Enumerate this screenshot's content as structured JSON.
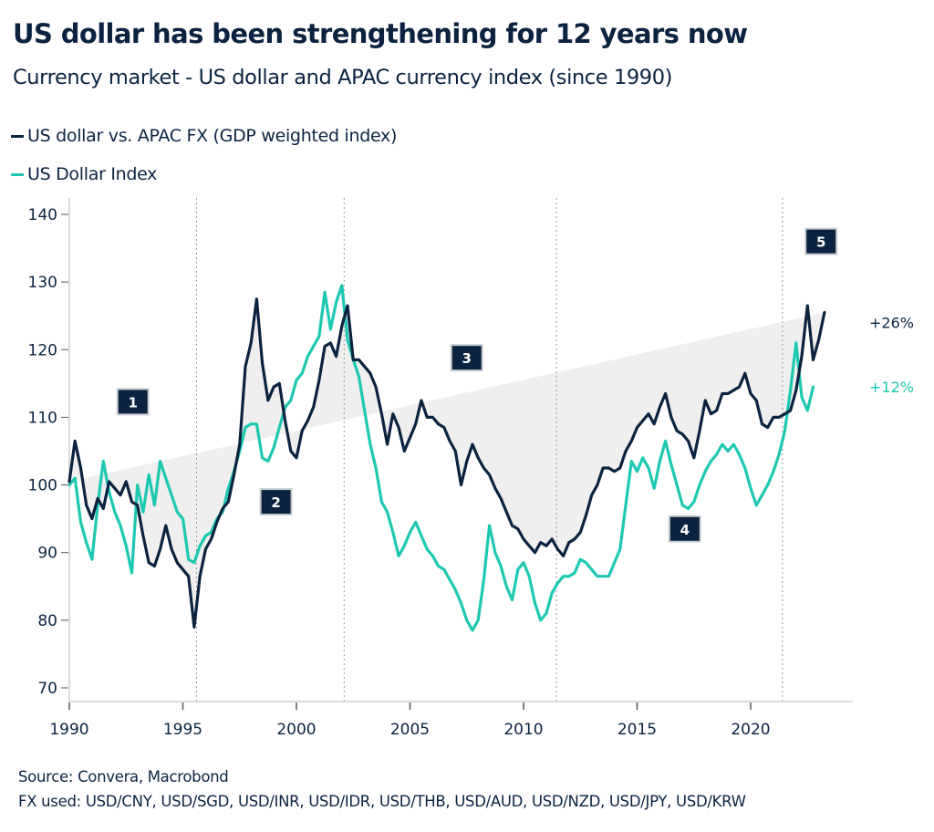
{
  "header": {
    "title": "US dollar has been strengthening for 12 years now",
    "subtitle": "Currency market - US dollar and APAC currency index (since 1990)"
  },
  "legend": [
    {
      "label": "US dollar vs. APAC FX (GDP weighted index)",
      "color": "#0b2340"
    },
    {
      "label": "US Dollar Index",
      "color": "#1ec8b0"
    }
  ],
  "footer": {
    "source": "Source: Convera, Macrobond",
    "fx_used": "FX used: USD/CNY, USD/SGD, USD/INR, USD/IDR, USD/THB, USD/AUD, USD/NZD, USD/JPY, USD/KRW"
  },
  "chart_data": {
    "type": "line",
    "title": "US dollar has been strengthening for 12 years now",
    "subtitle": "Currency market - US dollar and APAC currency index (since 1990)",
    "xlabel": "",
    "ylabel": "",
    "xlim": [
      1990,
      2024.5
    ],
    "ylim": [
      67,
      142
    ],
    "x_ticks": [
      1990,
      1995,
      2000,
      2005,
      2010,
      2015,
      2020
    ],
    "x_tick_labels": [
      "1990",
      "1995",
      "2000",
      "2005",
      "2010",
      "2015",
      "2020"
    ],
    "y_ticks": [
      70,
      80,
      90,
      100,
      110,
      120,
      130,
      140
    ],
    "y_tick_labels": [
      "70",
      "80",
      "90",
      "100",
      "110",
      "120",
      "130",
      "140"
    ],
    "grid": false,
    "legend_position": "top-left",
    "fill_between_series": true,
    "fill_color": "#efefef",
    "vertical_markers": [
      1995.6,
      2002.1,
      2011.45,
      2021.4
    ],
    "regime_boxes": [
      {
        "label": "1",
        "x": 1992.8,
        "y": 112.3
      },
      {
        "label": "2",
        "x": 1999.1,
        "y": 97.5
      },
      {
        "label": "3",
        "x": 2007.5,
        "y": 118.8
      },
      {
        "label": "4",
        "x": 2017.1,
        "y": 93.5
      },
      {
        "label": "5",
        "x": 2023.1,
        "y": 136.0
      }
    ],
    "end_labels": [
      {
        "text": "+26%",
        "series": 0,
        "color": "#0b2340",
        "y": 124.0
      },
      {
        "text": "+12%",
        "series": 1,
        "color": "#1ec8b0",
        "y": 114.5
      }
    ],
    "x": [
      1990.0,
      1990.25,
      1990.5,
      1990.75,
      1991.0,
      1991.25,
      1991.5,
      1991.75,
      1992.0,
      1992.25,
      1992.5,
      1992.75,
      1993.0,
      1993.25,
      1993.5,
      1993.75,
      1994.0,
      1994.25,
      1994.5,
      1994.75,
      1995.0,
      1995.25,
      1995.5,
      1995.75,
      1996.0,
      1996.25,
      1996.5,
      1996.75,
      1997.0,
      1997.25,
      1997.5,
      1997.75,
      1998.0,
      1998.25,
      1998.5,
      1998.75,
      1999.0,
      1999.25,
      1999.5,
      1999.75,
      2000.0,
      2000.25,
      2000.5,
      2000.75,
      2001.0,
      2001.25,
      2001.5,
      2001.75,
      2002.0,
      2002.25,
      2002.5,
      2002.75,
      2003.0,
      2003.25,
      2003.5,
      2003.75,
      2004.0,
      2004.25,
      2004.5,
      2004.75,
      2005.0,
      2005.25,
      2005.5,
      2005.75,
      2006.0,
      2006.25,
      2006.5,
      2006.75,
      2007.0,
      2007.25,
      2007.5,
      2007.75,
      2008.0,
      2008.25,
      2008.5,
      2008.75,
      2009.0,
      2009.25,
      2009.5,
      2009.75,
      2010.0,
      2010.25,
      2010.5,
      2010.75,
      2011.0,
      2011.25,
      2011.5,
      2011.75,
      2012.0,
      2012.25,
      2012.5,
      2012.75,
      2013.0,
      2013.25,
      2013.5,
      2013.75,
      2014.0,
      2014.25,
      2014.5,
      2014.75,
      2015.0,
      2015.25,
      2015.5,
      2015.75,
      2016.0,
      2016.25,
      2016.5,
      2016.75,
      2017.0,
      2017.25,
      2017.5,
      2017.75,
      2018.0,
      2018.25,
      2018.5,
      2018.75,
      2019.0,
      2019.25,
      2019.5,
      2019.75,
      2020.0,
      2020.25,
      2020.5,
      2020.75,
      2021.0,
      2021.25,
      2021.5,
      2021.75,
      2022.0,
      2022.25,
      2022.5,
      2022.75,
      2023.0,
      2023.25,
      2023.5,
      2023.75
    ],
    "series": [
      {
        "name": "US dollar vs. APAC FX (GDP weighted index)",
        "color": "#0b2340",
        "values": [
          100.5,
          106.5,
          102.5,
          97.0,
          95.0,
          98.0,
          96.5,
          100.5,
          99.5,
          98.5,
          100.5,
          97.5,
          97.0,
          92.5,
          88.5,
          88.0,
          90.5,
          94.0,
          90.5,
          88.5,
          87.5,
          86.5,
          79.0,
          86.5,
          90.5,
          92.0,
          94.5,
          96.5,
          97.5,
          101.5,
          106.0,
          117.5,
          121.0,
          127.5,
          118.0,
          112.5,
          114.5,
          115.0,
          109.5,
          105.0,
          104.0,
          108.0,
          109.5,
          111.5,
          115.5,
          120.5,
          121.0,
          119.0,
          123.5,
          126.5,
          118.5,
          118.5,
          117.5,
          116.5,
          114.5,
          110.5,
          106.0,
          110.5,
          108.5,
          105.0,
          107.0,
          109.0,
          112.5,
          110.0,
          110.0,
          109.0,
          108.5,
          106.5,
          105.0,
          100.0,
          103.5,
          106.0,
          104.0,
          102.5,
          101.5,
          99.5,
          98.0,
          96.0,
          94.0,
          93.5,
          92.0,
          91.0,
          90.0,
          91.5,
          91.0,
          92.0,
          90.5,
          89.5,
          91.5,
          92.0,
          93.0,
          95.5,
          98.5,
          100.0,
          102.5,
          102.5,
          102.0,
          102.5,
          105.0,
          106.5,
          108.5,
          109.5,
          110.5,
          109.0,
          111.5,
          113.5,
          110.0,
          108.0,
          107.5,
          106.5,
          104.0,
          108.0,
          112.5,
          110.5,
          111.0,
          113.5,
          113.5,
          114.0,
          114.5,
          116.5,
          113.5,
          112.5,
          109.0,
          108.5,
          110.0,
          110.0,
          110.5,
          111.0,
          114.0,
          119.0,
          126.5,
          118.5,
          121.5,
          125.5
        ]
      },
      {
        "name": "US Dollar Index",
        "color": "#1ec8b0",
        "values": [
          100.0,
          101.0,
          94.5,
          91.5,
          89.0,
          97.0,
          103.5,
          99.0,
          96.0,
          94.0,
          91.0,
          87.0,
          100.0,
          96.0,
          101.5,
          97.0,
          103.5,
          101.0,
          98.5,
          96.0,
          95.0,
          89.0,
          88.5,
          91.0,
          92.5,
          93.0,
          95.0,
          96.0,
          99.5,
          102.0,
          105.0,
          108.5,
          109.0,
          109.0,
          104.0,
          103.5,
          105.5,
          108.5,
          111.5,
          112.5,
          115.5,
          116.5,
          119.0,
          120.5,
          122.0,
          128.5,
          123.0,
          127.0,
          129.5,
          121.5,
          118.5,
          116.0,
          111.0,
          106.0,
          102.5,
          97.5,
          96.0,
          93.0,
          89.5,
          91.0,
          93.0,
          94.5,
          92.5,
          90.5,
          89.5,
          88.0,
          87.5,
          86.0,
          84.5,
          82.5,
          80.0,
          78.5,
          80.0,
          86.0,
          94.0,
          90.0,
          88.0,
          85.0,
          83.0,
          87.5,
          88.5,
          86.5,
          82.5,
          80.0,
          81.0,
          84.0,
          85.5,
          86.5,
          86.5,
          87.0,
          89.0,
          88.5,
          87.5,
          86.5,
          86.5,
          86.5,
          88.5,
          90.5,
          97.0,
          103.5,
          102.0,
          104.0,
          102.5,
          99.5,
          103.5,
          106.5,
          103.0,
          100.0,
          97.0,
          96.5,
          97.5,
          100.0,
          102.0,
          103.5,
          104.5,
          106.0,
          105.0,
          106.0,
          104.5,
          102.5,
          99.5,
          97.0,
          98.5,
          100.0,
          102.0,
          104.5,
          108.0,
          114.0,
          121.0,
          113.0,
          111.0,
          114.5
        ]
      }
    ]
  }
}
